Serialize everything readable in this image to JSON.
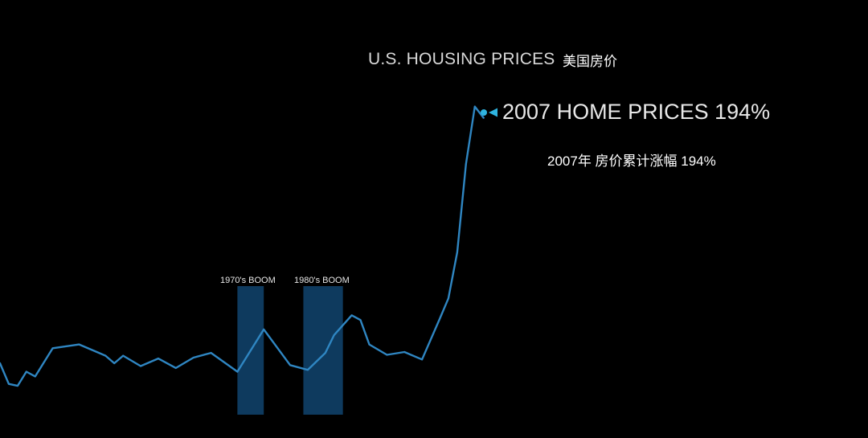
{
  "chart_data": {
    "type": "line",
    "title": "U.S. HOUSING PRICES",
    "subtitle": "美国房价",
    "line_color": "#2f86c2",
    "marker_color": "#2fb4e0",
    "band_color": "#0e3a5e",
    "background": "#000000",
    "x_range": [
      0,
      82
    ],
    "y_range": [
      -160,
      250
    ],
    "grid": false,
    "legend": "none",
    "series": [
      {
        "values": [
          {
            "x": 0,
            "y": 0
          },
          {
            "x": 1,
            "y": -22
          },
          {
            "x": 2,
            "y": -24
          },
          {
            "x": 3,
            "y": -9
          },
          {
            "x": 4,
            "y": -14
          },
          {
            "x": 6,
            "y": 16
          },
          {
            "x": 9,
            "y": 20
          },
          {
            "x": 12,
            "y": 8
          },
          {
            "x": 13,
            "y": 0
          },
          {
            "x": 14,
            "y": 8
          },
          {
            "x": 16,
            "y": -3
          },
          {
            "x": 18,
            "y": 5
          },
          {
            "x": 20,
            "y": -5
          },
          {
            "x": 22,
            "y": 6
          },
          {
            "x": 24,
            "y": 11
          },
          {
            "x": 27,
            "y": -9
          },
          {
            "x": 30,
            "y": 36
          },
          {
            "x": 33,
            "y": -2
          },
          {
            "x": 35,
            "y": -7
          },
          {
            "x": 37,
            "y": 11
          },
          {
            "x": 38,
            "y": 30
          },
          {
            "x": 40,
            "y": 51
          },
          {
            "x": 41,
            "y": 46
          },
          {
            "x": 42,
            "y": 20
          },
          {
            "x": 44,
            "y": 9
          },
          {
            "x": 46,
            "y": 12
          },
          {
            "x": 48,
            "y": 4
          },
          {
            "x": 50,
            "y": 47
          },
          {
            "x": 51,
            "y": 69
          },
          {
            "x": 52,
            "y": 118
          },
          {
            "x": 53,
            "y": 212
          },
          {
            "x": 54,
            "y": 273
          },
          {
            "x": 55,
            "y": 261
          }
        ]
      }
    ],
    "shaded_periods": [
      {
        "label": "1970's BOOM",
        "x_start": 27,
        "x_end": 30
      },
      {
        "label": "1980's BOOM",
        "x_start": 34.5,
        "x_end": 39
      }
    ],
    "annotations": [
      {
        "text": "2007 HOME PRICES 194%",
        "text_cn": "2007年 房价累计涨幅 194%",
        "x": 55,
        "y": 261
      }
    ]
  }
}
